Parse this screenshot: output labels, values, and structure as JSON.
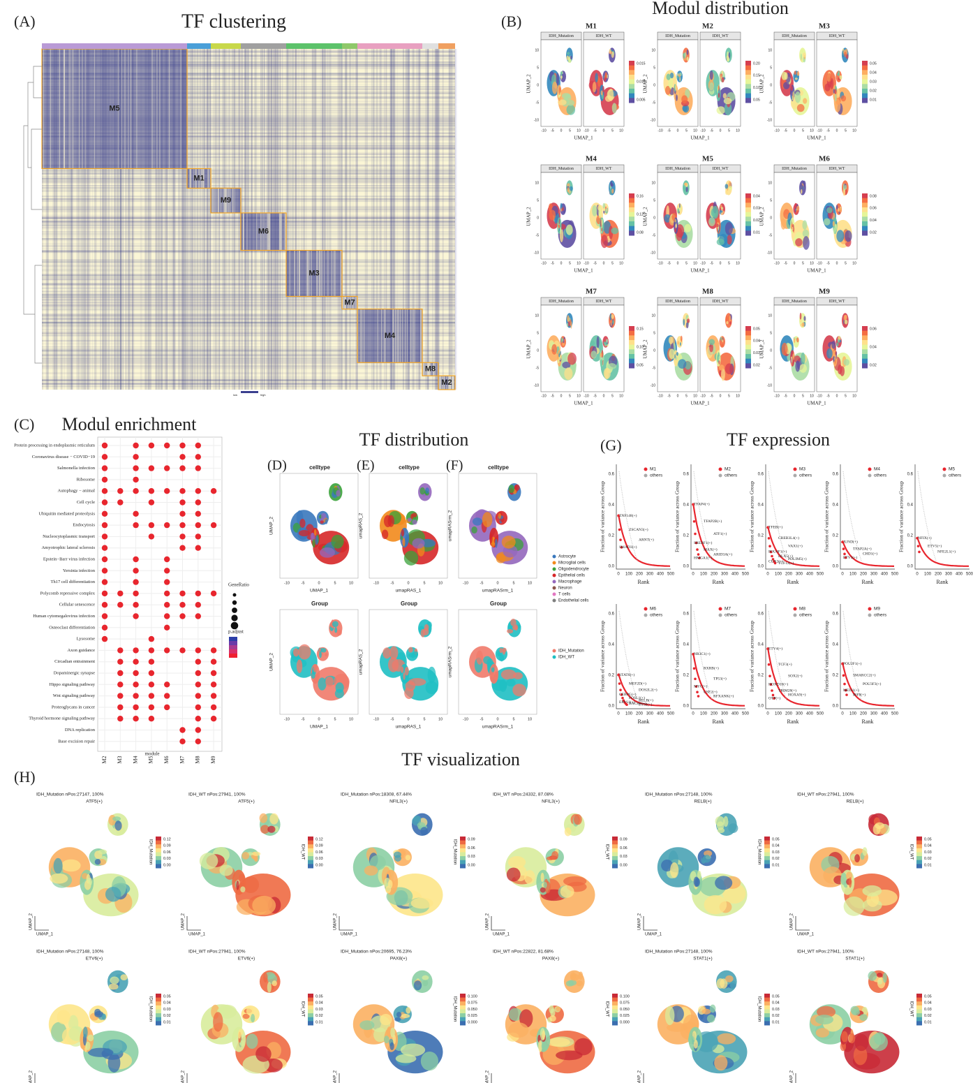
{
  "panels": {
    "A": {
      "label": "(A)",
      "title": "TF clustering",
      "modules": [
        "M5",
        "M1",
        "M9",
        "M6",
        "M3",
        "M7",
        "M4",
        "M8",
        "M2"
      ],
      "legend": [
        "low",
        "high"
      ]
    },
    "B": {
      "label": "(B)",
      "title": "Modul distribution",
      "groups": [
        "IDH_Mutation",
        "IDH_WT"
      ],
      "xlabel": "UMAP_1",
      "ylabel": "UMAP_2",
      "xticks": [
        "-10",
        "-5",
        "0",
        "5",
        "10"
      ],
      "yticks": [
        "10",
        "5",
        "0",
        "-5",
        "-10"
      ],
      "plots": [
        {
          "module": "M1",
          "cbar": [
            "0.015",
            "0.010",
            "0.005"
          ]
        },
        {
          "module": "M2",
          "cbar": [
            "0.20",
            "0.15",
            "0.10",
            "0.05"
          ]
        },
        {
          "module": "M3",
          "cbar": [
            "0.05",
            "0.04",
            "0.03",
            "0.02",
            "0.01"
          ]
        },
        {
          "module": "M4",
          "cbar": [
            "0.16",
            "0.12",
            "0.08"
          ]
        },
        {
          "module": "M5",
          "cbar": [
            "0.04",
            "0.03",
            "0.02",
            "0.01"
          ]
        },
        {
          "module": "M6",
          "cbar": [
            "0.08",
            "0.06",
            "0.04",
            "0.02"
          ]
        },
        {
          "module": "M7",
          "cbar": [
            "0.15",
            "0.10",
            "0.05"
          ]
        },
        {
          "module": "M8",
          "cbar": [
            "0.05",
            "0.04",
            "0.03",
            "0.02"
          ]
        },
        {
          "module": "M9",
          "cbar": [
            "0.06",
            "0.04",
            "0.02"
          ]
        }
      ]
    },
    "C": {
      "label": "(C)",
      "title": "Modul enrichment",
      "xlabel": "module",
      "legend_size": "GeneRatio",
      "legend_color": "p.adjust",
      "dot_color": "#e8262e",
      "modules": [
        "M2",
        "M3",
        "M4",
        "M5",
        "M6",
        "M7",
        "M8",
        "M9"
      ],
      "pathways": [
        "Protein processing in endoplasmic reticulum",
        "Coronavirus disease − COVID−19",
        "Salmonella infection",
        "Ribosome",
        "Autophagy − animal",
        "Cell cycle",
        "Ubiquitin mediated proteolysis",
        "Endocytosis",
        "Nucleocytoplasmic transport",
        "Amyotrophic lateral sclerosis",
        "Epstein−Barr virus infection",
        "Yersinia infection",
        "Th17 cell differentiation",
        "Polycomb repressive complex",
        "Cellular senescence",
        "Human cytomegalovirus infection",
        "Osteoclast differentiation",
        "Lysosome",
        "Axon guidance",
        "Circadian entrainment",
        "Dopaminergic synapse",
        "Hippo signaling pathway",
        "Wnt signaling pathway",
        "Proteoglycans in cancer",
        "Thyroid hormone signaling pathway",
        "DNA replication",
        "Base excision repair"
      ],
      "dots": [
        [
          0,
          2,
          3,
          4,
          5,
          6
        ],
        [
          0,
          2,
          5,
          6
        ],
        [
          0,
          2,
          3,
          4,
          5,
          6
        ],
        [
          0,
          2
        ],
        [
          0,
          1,
          2,
          3,
          4,
          5,
          6,
          7
        ],
        [
          0,
          1,
          3,
          5,
          6
        ],
        [
          0,
          2,
          5,
          6
        ],
        [
          0,
          2,
          3,
          4,
          5,
          6,
          7
        ],
        [
          0,
          3,
          5,
          6
        ],
        [
          0,
          5,
          6
        ],
        [
          0,
          2,
          4
        ],
        [
          0,
          2,
          4
        ],
        [
          0,
          2,
          4
        ],
        [
          0,
          1,
          2,
          4,
          5,
          6,
          7
        ],
        [
          0,
          1,
          2,
          4,
          5,
          6
        ],
        [
          0,
          2,
          4,
          5,
          6
        ],
        [
          0,
          4
        ],
        [
          0,
          3
        ],
        [
          1,
          2,
          3,
          4,
          5,
          6,
          7
        ],
        [
          1,
          2,
          3,
          6,
          7
        ],
        [
          1,
          2,
          3,
          6,
          7
        ],
        [
          1,
          2,
          3,
          4,
          6,
          7
        ],
        [
          1,
          2,
          3,
          4,
          6,
          7
        ],
        [
          1,
          2,
          3,
          4,
          6,
          7
        ],
        [
          1,
          2,
          3,
          6,
          7
        ],
        [
          5,
          6
        ],
        [
          5,
          6
        ]
      ]
    },
    "DEF": {
      "title": "TF distribution",
      "labels": [
        "(D)",
        "(E)",
        "(F)"
      ],
      "top_title": "celltype",
      "bottom_title": "Group",
      "xlabels": [
        "UMAP_1",
        "umapRAS_1",
        "umapRASrm_1"
      ],
      "ylabels": [
        "UMAP_2",
        "umapRAS_2",
        "umapRASrm_2"
      ],
      "ticks": [
        "-10",
        "-5",
        "0",
        "5",
        "10"
      ],
      "celltypes": [
        "Astrocyte",
        "Microglial cells",
        "Oligodendrocyte",
        "Epithelial cells",
        "Macrophage",
        "Neuron",
        "T cells",
        "Endothelial cells"
      ],
      "celltype_colors": [
        "#3a78bd",
        "#f28a1c",
        "#3aa23a",
        "#d62728",
        "#9467bd",
        "#8c564b",
        "#e377c2",
        "#7f7f7f"
      ],
      "groups": [
        "IDH_Mutation",
        "IDH_WT"
      ],
      "group_colors": [
        "#f07a6a",
        "#1fbfc3"
      ]
    },
    "G": {
      "label": "(G)",
      "title": "TF expression",
      "others": "others",
      "ylabel": "Fraction of variance across Group",
      "xlabel": "Rank",
      "xticks": [
        "0",
        "100",
        "200",
        "300",
        "400",
        "500"
      ],
      "yticks": [
        "0.0",
        "0.2",
        "0.4",
        "0.6"
      ],
      "plots": [
        {
          "module": "M1",
          "genes": [
            "ZNF148(+)",
            "ZSCAN3(+)",
            "ARNT(+)",
            "SMAD3(+)"
          ]
        },
        {
          "module": "M2",
          "genes": [
            "TFAP4(+)",
            "TFAP2B(+)",
            "ATF1(+)",
            "SREBF1(+)",
            "MAX(+)",
            "ARID3A(+)",
            "HMGA1(+)"
          ]
        },
        {
          "module": "M3",
          "genes": [
            "TFEB(+)",
            "CREB3L4(+)",
            "VAX1(+)",
            "POU4F1(+)",
            "DLX5(+)",
            "PDLIM5(+)",
            "CUX2(+)",
            "TCF12(+)"
          ]
        },
        {
          "module": "M4",
          "genes": [
            "JUND(+)",
            "TFAP2A(+)",
            "CHD1(+)",
            "ETV3(+)"
          ]
        },
        {
          "module": "M5",
          "genes": [
            "NFIX(+)",
            "ETV5(+)",
            "NFE2L1(+)"
          ]
        },
        {
          "module": "M6",
          "genes": [
            "STAT6(+)",
            "MEF2D(+)",
            "DOS2L2(+)",
            "CEBPG(+)",
            "FOSL1(+)",
            "RELB(+)",
            "EPAS1(+)",
            "BACH1(+)",
            "ETS2(+)"
          ]
        },
        {
          "module": "M7",
          "genes": [
            "NR3C1(+)",
            "RXRB(+)",
            "TP53(+)",
            "MYC(+)",
            "USF2(+)",
            "RFXANK(+)"
          ]
        },
        {
          "module": "M8",
          "genes": [
            "ETV4(+)",
            "TCF3(+)",
            "SOX2(+)",
            "HOXD10(+)",
            "TRIM28(+)",
            "HOXA9(+)",
            "OTP(+)"
          ]
        },
        {
          "module": "M9",
          "genes": [
            "POU2F1(+)",
            "SMARCC2(+)",
            "POU3F3(+)",
            "MEIS1(+)",
            "IRF8(+)"
          ]
        }
      ]
    },
    "H": {
      "label": "(H)",
      "title": "TF visualization",
      "xlabel": "UMAP_1",
      "ylabel": "UMAP_2",
      "plots": [
        {
          "header": "IDH_Mutation nPos:27147, 100%",
          "tf": "ATF5(+)",
          "cbar_label": "IDH_Mutation",
          "cbar": [
            "0.12",
            "0.09",
            "0.06",
            "0.03",
            "0.00"
          ]
        },
        {
          "header": "IDH_WT nPos:27941, 100%",
          "tf": "ATF5(+)",
          "cbar_label": "IDH_WT",
          "cbar": [
            "0.12",
            "0.09",
            "0.06",
            "0.03",
            "0.00"
          ]
        },
        {
          "header": "IDH_Mutation nPos:18308, 67.44%",
          "tf": "NFIL3(+)",
          "cbar_label": "IDH_Mutation",
          "cbar": [
            "0.09",
            "0.06",
            "0.03",
            "0.00"
          ]
        },
        {
          "header": "IDH_WT nPos:24332, 87.08%",
          "tf": "NFIL3(+)",
          "cbar_label": "IDH_WT",
          "cbar": [
            "0.09",
            "0.06",
            "0.03",
            "0.00"
          ]
        },
        {
          "header": "IDH_Mutation nPos:27148, 100%",
          "tf": "RELB(+)",
          "cbar_label": "IDH_Mutation",
          "cbar": [
            "0.05",
            "0.04",
            "0.03",
            "0.02",
            "0.01"
          ]
        },
        {
          "header": "IDH_WT nPos:27941, 100%",
          "tf": "RELB(+)",
          "cbar_label": "IDH_WT",
          "cbar": [
            "0.05",
            "0.04",
            "0.03",
            "0.02",
            "0.01"
          ]
        },
        {
          "header": "IDH_Mutation nPos:27148, 100%",
          "tf": "ETV6(+)",
          "cbar_label": "IDH_Mutation",
          "cbar": [
            "0.05",
            "0.04",
            "0.03",
            "0.02",
            "0.01"
          ]
        },
        {
          "header": "IDH_WT nPos:27941, 100%",
          "tf": "ETV6(+)",
          "cbar_label": "IDH_WT",
          "cbar": [
            "0.05",
            "0.04",
            "0.03",
            "0.02",
            "0.01"
          ]
        },
        {
          "header": "IDH_Mutation nPos:20695, 76.23%",
          "tf": "PAX8(+)",
          "cbar_label": "IDH_Mutation",
          "cbar": [
            "0.100",
            "0.075",
            "0.050",
            "0.025",
            "0.000"
          ]
        },
        {
          "header": "IDH_WT nPos:22822, 81.68%",
          "tf": "PAX8(+)",
          "cbar_label": "IDH_WT",
          "cbar": [
            "0.100",
            "0.075",
            "0.050",
            "0.025",
            "0.000"
          ]
        },
        {
          "header": "IDH_Mutation nPos:27148, 100%",
          "tf": "STAT1(+)",
          "cbar_label": "IDH_Mutation",
          "cbar": [
            "0.05",
            "0.04",
            "0.03",
            "0.02",
            "0.01"
          ]
        },
        {
          "header": "IDH_WT nPos:27941, 100%",
          "tf": "STAT1(+)",
          "cbar_label": "IDH_WT",
          "cbar": [
            "0.05",
            "0.04",
            "0.03",
            "0.02",
            "0.01"
          ]
        }
      ]
    }
  }
}
